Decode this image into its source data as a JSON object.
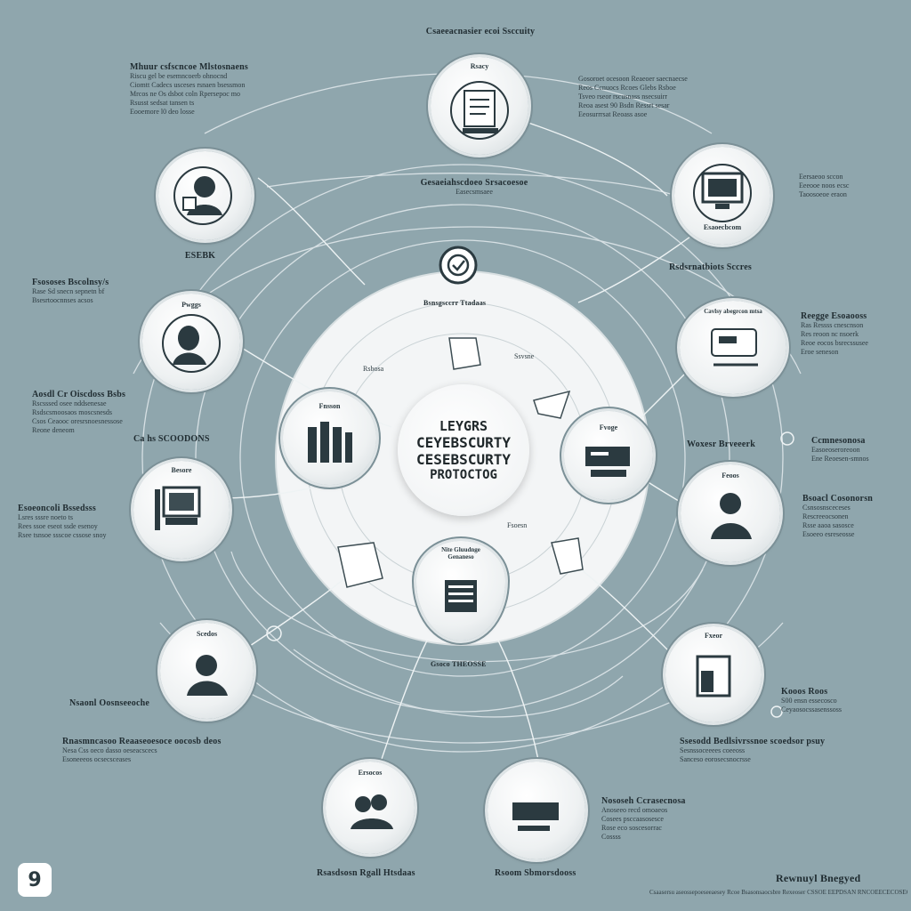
{
  "title": "Csaeeacnasier ecoi Ssccuity",
  "center": {
    "line1": "LEYGRS",
    "line2": "CEYEBSCURTY",
    "line3": "CESEBSCURTY",
    "line4": "PROTOCTOG"
  },
  "badge": "9",
  "logo_text": "Rewnuyl Bnegyed",
  "nodes": {
    "top": "Rsacy",
    "top_right": "Esaoecbcom",
    "right_upper": "Cavlsy abegrcon mtsa",
    "right_mid": "Feoos",
    "left_upper": "ESEBK",
    "left_mid": "Pwggs",
    "left_lower": "Besore",
    "bottom_left": "Scedos",
    "bottom_right_upper": "Fxeor",
    "bottom_mid_left": "Ersocos",
    "bottom_mid_right": "",
    "inner_left": "Fnsson",
    "inner_right": "Fvoge",
    "inner_bottom": "Nite Gluudnge Genaneso"
  },
  "labels": {
    "tl_title": "Mhuur csfscncoe Mlstosnaens",
    "tl_desc": [
      "Riscu gel be esemncoerb ohnocnd",
      "Ciomtt Cadecs usceses rsnaen bsessmon",
      "Mrcos ne Os dsbot coln Rpersepoc mo",
      "Rsusst sedsat tansen ts",
      "Eooemore l0 deo losse"
    ],
    "tc_title": "Gesaeiahscdoeo Srsacoesoe",
    "tc_sub": "Easecsmsaee",
    "tr_desc": [
      "Gosoroet ocesoon Reaeoer saecnaecse",
      "Reos Ccnuocs Rcoes Glebs Rsboe",
      "Tsveo rseor rscusnass nsecsuirr",
      "Reoa asest 90 Bsdn Ressrt sesar",
      "Eeosurrrsat Reoass asoe"
    ],
    "r1_desc": [
      "Eersaeoo sccon",
      "Eeeooe noos ecsc",
      "Taoosoeoe eraon"
    ],
    "r1_title": "Rsdsrnatbiots Sccres",
    "r2_title": "Reegge Esoaooss",
    "r2_desc": [
      "Ras Ressss cnescnson",
      "Res reoon nc nsoerk",
      "Reoe eocos bsrecssusee",
      "Eroe seneson"
    ],
    "r3_title": "Ccmnesonosa",
    "r3_desc": [
      "Easoeoseroreoon",
      "Ene Reoesen-smnos"
    ],
    "r3_tag": "Woxesr Brveeerk",
    "r4_title": "Bsoacl Cosonorsn",
    "r4_desc": [
      "Csnsosnsceceses",
      "Rescreeocsonen",
      "Rsse aaoa sasosce",
      "Esoeeo esreseosse"
    ],
    "l1_title": "Fsososes Bscolnsy/s",
    "l1_desc": [
      "Rase Sd snecn sepnetn bf",
      "Bsesrtoocnnses acsos"
    ],
    "l2_title": "Aosdl Cr Oiscdoss Bsbs",
    "l2_desc": [
      "Rscsssed osee nddsenesae",
      "Rsdscsmoosaos moscsnesds",
      "Csos Ceaooc oresrsnoesnessose",
      "Reone deneom"
    ],
    "l2_tag": "Ca hs SCOODONS",
    "l3_title": "Esoeoncoli Bssedsss",
    "l3_desc": [
      "Lsres sssre noeto ts",
      "Rees ssoe eseot ssde esenoy",
      "Rsee tsnsoe ssscoe cssose snoy"
    ],
    "bl_title": "Nsaonl Oosnseeoche",
    "bl2_title": "Rnasmncasoo Reaaseoesoce oocosb deos",
    "bl2_desc": [
      "Nesa Css oeco dasso oeseacscecs",
      "Esoneeeos ocsecsceases"
    ],
    "br1_title": "Kooos Roos",
    "br1_desc": [
      "S00 ensn essecosco",
      "Ceyaosocssasenssoss"
    ],
    "br2_title": "Ssesodd Bedlsivrssnoe scoedsor psuy",
    "br2_desc": [
      "Sesnssoceeees coeeoss",
      "Sanceso eorosecsnocrsse"
    ],
    "bm_title": "Nososeh Ccrasecnosa",
    "bm_desc": [
      "Anoseeo recd omoaeos",
      "Cosees psccaasosesce",
      "Rose eco soscesorrac",
      "Cossss"
    ],
    "bottom_left_caption": "Rsasdsosn Rgall Htsdaas",
    "bottom_mid_caption": "Rsoom Sbmorsdooss",
    "inner_top_label": "Bsnsgsccrr Ttadaas",
    "inner_bottom_label": "Gsoco THEOSSE",
    "inner_small_1": "Rsbosa",
    "inner_small_2": "Ssvsne",
    "inner_small_3": "Fsoesn",
    "footer": "Csaasersu aseossepoeseeaesey Rcoe Bsasonsaocsbre Rexeoser CSSOE EEPDSAN RNCOEECECOSEOE"
  }
}
